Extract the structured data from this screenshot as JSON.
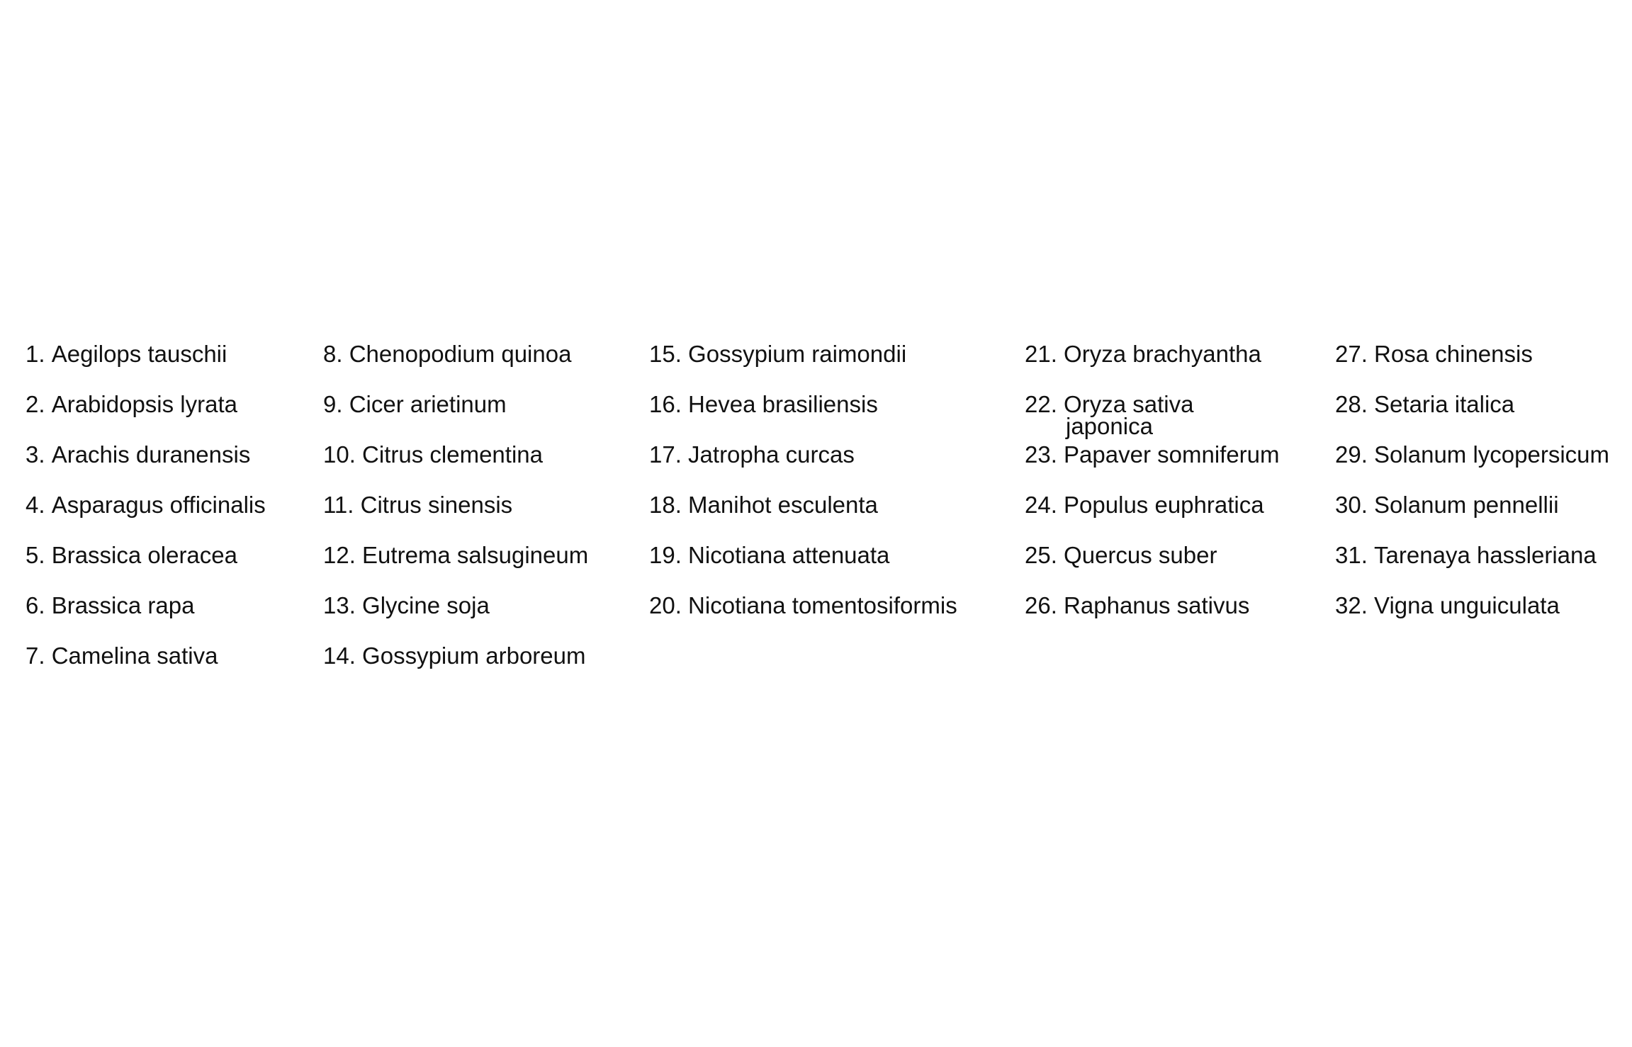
{
  "legend": {
    "columns": [
      {
        "items": [
          {
            "num": "1.",
            "name": "Aegilops tauschii"
          },
          {
            "num": "2.",
            "name": "Arabidopsis lyrata"
          },
          {
            "num": "3.",
            "name": "Arachis duranensis"
          },
          {
            "num": "4.",
            "name": "Asparagus officinalis"
          },
          {
            "num": "5.",
            "name": "Brassica oleracea"
          },
          {
            "num": "6.",
            "name": "Brassica rapa"
          },
          {
            "num": "7.",
            "name": "Camelina sativa"
          }
        ]
      },
      {
        "items": [
          {
            "num": "8.",
            "name": "Chenopodium quinoa"
          },
          {
            "num": "9.",
            "name": "Cicer arietinum"
          },
          {
            "num": "10.",
            "name": "Citrus clementina"
          },
          {
            "num": "11.",
            "name": "Citrus sinensis"
          },
          {
            "num": "12.",
            "name": "Eutrema salsugineum"
          },
          {
            "num": "13.",
            "name": "Glycine soja"
          },
          {
            "num": "14.",
            "name": "Gossypium arboreum"
          }
        ]
      },
      {
        "items": [
          {
            "num": "15.",
            "name": "Gossypium raimondii"
          },
          {
            "num": "16.",
            "name": "Hevea brasiliensis"
          },
          {
            "num": "17.",
            "name": "Jatropha curcas"
          },
          {
            "num": "18.",
            "name": "Manihot esculenta"
          },
          {
            "num": "19.",
            "name": "Nicotiana attenuata"
          },
          {
            "num": "20.",
            "name": "Nicotiana tomentosiformis"
          }
        ]
      },
      {
        "items": [
          {
            "num": "21.",
            "name": "Oryza brachyantha"
          },
          {
            "num": "22.",
            "name": "Oryza sativa",
            "name2": "japonica"
          },
          {
            "num": "23.",
            "name": "Papaver somniferum"
          },
          {
            "num": "24.",
            "name": "Populus euphratica"
          },
          {
            "num": "25.",
            "name": "Quercus suber"
          },
          {
            "num": "26.",
            "name": "Raphanus sativus"
          }
        ]
      },
      {
        "items": [
          {
            "num": "27.",
            "name": "Rosa chinensis"
          },
          {
            "num": "28.",
            "name": "Setaria italica"
          },
          {
            "num": "29.",
            "name": "Solanum lycopersicum"
          },
          {
            "num": "30.",
            "name": "Solanum pennellii"
          },
          {
            "num": "31.",
            "name": "Tarenaya hassleriana"
          },
          {
            "num": "32.",
            "name": "Vigna unguiculata"
          }
        ]
      }
    ]
  }
}
